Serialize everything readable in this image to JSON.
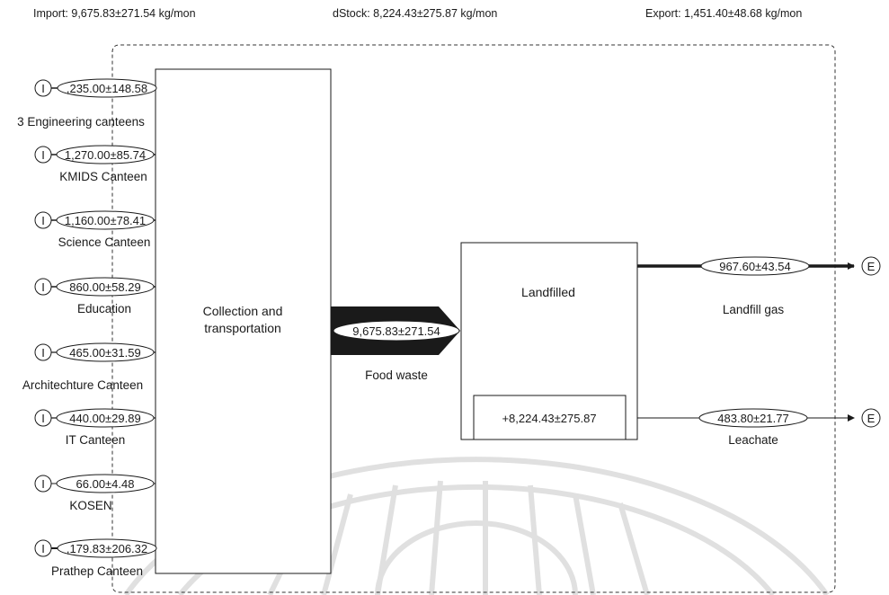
{
  "header": {
    "import": "Import: 9,675.83±271.54 kg/mon",
    "dstock": "dStock: 8,224.43±275.87 kg/mon",
    "export": "Export: 1,451.40±48.68 kg/mon"
  },
  "inputs": [
    {
      "marker": "I",
      "value": ",235.00±148.58",
      "label": "3 Engineering canteens"
    },
    {
      "marker": "I",
      "value": "1,270.00±85.74",
      "label": "KMIDS Canteen"
    },
    {
      "marker": "I",
      "value": "1,160.00±78.41",
      "label": "Science Canteen"
    },
    {
      "marker": "I",
      "value": "860.00±58.29",
      "label": "Education"
    },
    {
      "marker": "I",
      "value": "465.00±31.59",
      "label": "Architechture Canteen"
    },
    {
      "marker": "I",
      "value": "440.00±29.89",
      "label": "IT Canteen"
    },
    {
      "marker": "I",
      "value": "66.00±4.48",
      "label": "KOSEN"
    },
    {
      "marker": "I",
      "value": ",179.83±206.32",
      "label": "Prathep Canteen"
    }
  ],
  "collection": {
    "line1": "Collection and",
    "line2": "transportation"
  },
  "food_waste": {
    "value": "9,675.83±271.54",
    "label": "Food waste"
  },
  "landfill": {
    "label": "Landfilled",
    "stock": "+8,224.43±275.87"
  },
  "outputs": [
    {
      "value": "967.60±43.54",
      "label": "Landfill gas",
      "marker": "E"
    },
    {
      "value": "483.80±21.77",
      "label": "Leachate",
      "marker": "E"
    }
  ],
  "colors": {
    "line": "#1a1a1a",
    "boundary": "#333333",
    "watermark": "#c8c8c8"
  }
}
